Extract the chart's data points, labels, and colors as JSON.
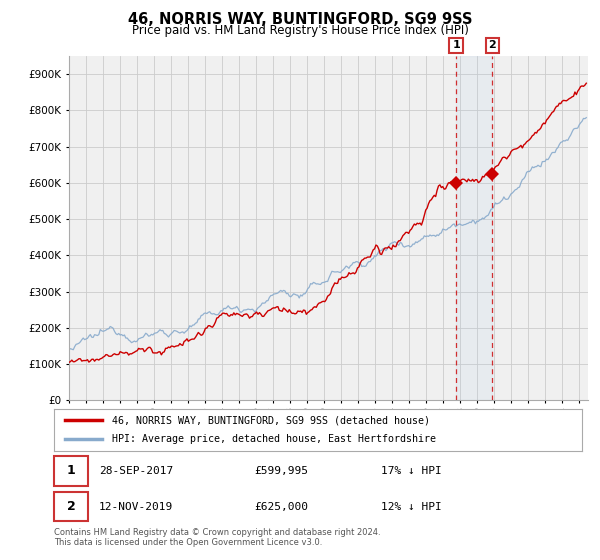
{
  "title": "46, NORRIS WAY, BUNTINGFORD, SG9 9SS",
  "subtitle": "Price paid vs. HM Land Registry's House Price Index (HPI)",
  "legend_line1": "46, NORRIS WAY, BUNTINGFORD, SG9 9SS (detached house)",
  "legend_line2": "HPI: Average price, detached house, East Hertfordshire",
  "annotation1_date": "28-SEP-2017",
  "annotation1_price": "£599,995",
  "annotation1_hpi": "17% ↓ HPI",
  "annotation1_year": 2017.75,
  "annotation1_value": 599995,
  "annotation2_date": "12-NOV-2019",
  "annotation2_price": "£625,000",
  "annotation2_hpi": "12% ↓ HPI",
  "annotation2_year": 2019.87,
  "annotation2_value": 625000,
  "footer_line1": "Contains HM Land Registry data © Crown copyright and database right 2024.",
  "footer_line2": "This data is licensed under the Open Government Licence v3.0.",
  "red_color": "#cc0000",
  "blue_color": "#88aacc",
  "grid_color": "#cccccc",
  "background_color": "#ffffff",
  "plot_bg_color": "#f0f0f0",
  "ylim_max": 950000,
  "xlim_start": 1995.0,
  "xlim_end": 2025.5
}
